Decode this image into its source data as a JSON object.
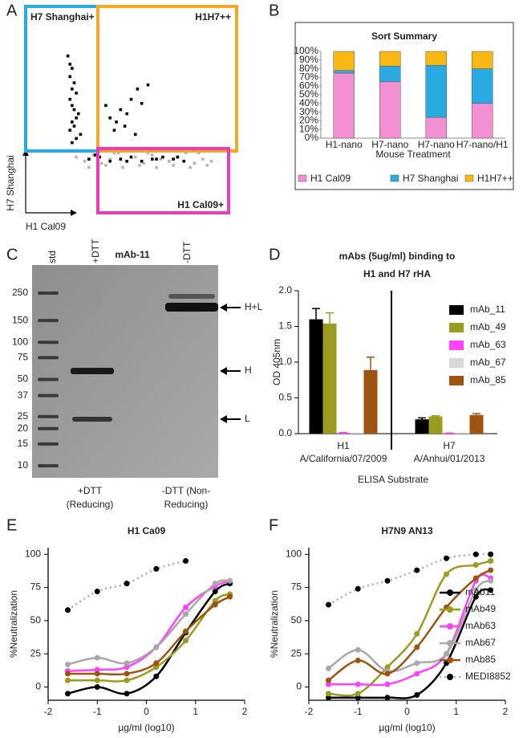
{
  "chart_data": [
    {
      "panel": "A",
      "type": "scatter",
      "xlabel": "H1 Cal09",
      "ylabel": "H7 Shanghai",
      "gates": [
        "H7 Shanghai+",
        "H1H7++",
        "H1 Cal09+"
      ],
      "gate_colors": [
        "#29abe2",
        "#f7a823",
        "#ee3bbb"
      ],
      "xlim": [
        0,
        100
      ],
      "ylim": [
        0,
        100
      ],
      "series": [
        {
          "color": "#b5b5b5",
          "x": [
            24,
            28,
            32,
            36,
            40,
            44,
            48,
            52,
            56,
            60,
            64,
            68,
            72,
            76,
            80,
            84,
            88,
            30,
            38,
            46,
            54,
            62,
            70,
            78,
            86,
            26,
            34,
            42,
            50,
            58,
            66,
            74,
            82
          ],
          "y": [
            27,
            25,
            28,
            24,
            26,
            29,
            25,
            27,
            24,
            28,
            26,
            25,
            27,
            29,
            24,
            26,
            25,
            22,
            23,
            22,
            23,
            22,
            23,
            22,
            23,
            30,
            30,
            29,
            30,
            29,
            30,
            30,
            29
          ]
        },
        {
          "color": "#000000",
          "x": [
            20,
            21,
            22,
            21,
            23,
            22,
            24,
            21,
            22,
            23,
            25,
            24,
            22,
            23,
            21,
            26,
            24,
            22,
            38,
            40,
            43,
            45,
            48,
            50,
            53,
            55,
            58,
            42,
            47,
            52,
            30,
            35,
            40,
            45,
            50,
            55,
            60,
            65,
            70,
            75,
            33,
            48,
            62,
            72
          ],
          "y": [
            76,
            72,
            70,
            66,
            63,
            60,
            58,
            55,
            52,
            50,
            48,
            46,
            44,
            42,
            40,
            38,
            36,
            34,
            52,
            46,
            44,
            50,
            48,
            55,
            60,
            53,
            62,
            40,
            42,
            38,
            26,
            27,
            25,
            26,
            27,
            25,
            26,
            27,
            26,
            25,
            28,
            25,
            26,
            27
          ]
        }
      ]
    },
    {
      "panel": "B",
      "type": "stacked_bar",
      "title": "Sort Summary",
      "xlabel": "Mouse Treatment",
      "categories": [
        "H1-nano",
        "H7-nano",
        "H7-nano",
        "H7-nano/H1"
      ],
      "series": [
        {
          "name": "H1 Cal09",
          "color": "#f38fd3",
          "values": [
            75,
            65,
            24,
            40
          ]
        },
        {
          "name": "H7 Shanghai",
          "color": "#29abe2",
          "values": [
            3,
            18,
            60,
            40
          ]
        },
        {
          "name": "H1H7++",
          "color": "#fbb814",
          "values": [
            22,
            17,
            16,
            20
          ]
        }
      ],
      "ylim": [
        0,
        100
      ],
      "yticks": [
        {
          "value": 0,
          "label": "0%"
        },
        {
          "value": 10,
          "label": "10%"
        },
        {
          "value": 20,
          "label": "20%"
        },
        {
          "value": 30,
          "label": "30%"
        },
        {
          "value": 40,
          "label": "40%"
        },
        {
          "value": 50,
          "label": "50%"
        },
        {
          "value": 60,
          "label": "60%"
        },
        {
          "value": 70,
          "label": "70%"
        },
        {
          "value": 80,
          "label": "80%"
        },
        {
          "value": 90,
          "label": "90%"
        },
        {
          "value": 100,
          "label": "100%"
        }
      ]
    },
    {
      "panel": "C",
      "type": "gel",
      "title": "mAb-11",
      "lanes": [
        "std",
        "+DTT",
        "-DTT"
      ],
      "ladder": [
        250,
        150,
        100,
        75,
        50,
        37,
        25,
        20,
        15,
        10
      ],
      "bands": [
        "H+L",
        "H",
        "L"
      ],
      "conditions": [
        [
          "+DTT",
          "(Reducing)"
        ],
        [
          "-DTT (Non-",
          "Reducing)"
        ]
      ]
    },
    {
      "panel": "D",
      "type": "grouped_bar",
      "title": [
        "mAbs (5ug/ml) binding to",
        "H1 and H7 rHA"
      ],
      "ylabel": "OD 405nm",
      "xlabel": "ELISA Substrate",
      "categories": [
        "H1",
        "H7"
      ],
      "category_subtitles": [
        "A/California/07/2009",
        "A/Anhui/01/2013"
      ],
      "series": [
        {
          "name": "mAb_11",
          "color": "#000000",
          "values": [
            1.6,
            0.2
          ],
          "errors": [
            0.15,
            0.02
          ]
        },
        {
          "name": "mAb_49",
          "color": "#9b9b1f",
          "values": [
            1.54,
            0.24
          ],
          "errors": [
            0.15,
            0.01
          ]
        },
        {
          "name": "mAb_63",
          "color": "#ff40ff",
          "values": [
            0.01,
            0.005
          ],
          "errors": [
            0.005,
            0.003
          ]
        },
        {
          "name": "mAb_67",
          "color": "#d8d8d8",
          "values": [
            0.005,
            0.005
          ],
          "errors": [
            0.003,
            0.003
          ]
        },
        {
          "name": "mAb_85",
          "color": "#a0520f",
          "values": [
            0.89,
            0.26
          ],
          "errors": [
            0.18,
            0.02
          ]
        }
      ],
      "ylim": [
        0,
        2
      ],
      "yticks": [
        {
          "value": 0,
          "label": "0.0"
        },
        {
          "value": 0.5,
          "label": "0.5"
        },
        {
          "value": 1,
          "label": "1.0"
        },
        {
          "value": 1.5,
          "label": "1.5"
        },
        {
          "value": 2,
          "label": "2.0"
        }
      ]
    },
    {
      "panel": "E",
      "type": "curve",
      "title": "H1 Ca09",
      "xlabel": "µg/ml (log10)",
      "ylabel": "%Neutralization",
      "x": [
        -1.6,
        -1.0,
        -0.4,
        0.2,
        0.8,
        1.4,
        1.7
      ],
      "series": [
        {
          "name": "mAb11",
          "color": "#000000",
          "values": [
            -5,
            0,
            -5,
            8,
            41,
            72,
            78
          ]
        },
        {
          "name": "mAb49",
          "color": "#9b9b1f",
          "values": [
            5,
            5,
            5,
            15,
            35,
            65,
            70
          ]
        },
        {
          "name": "mAb63",
          "color": "#ff40ff",
          "values": [
            12,
            13,
            15,
            30,
            60,
            76,
            80
          ]
        },
        {
          "name": "mAb67",
          "color": "#a8a8a8",
          "values": [
            17,
            22,
            18,
            30,
            55,
            78,
            80
          ]
        },
        {
          "name": "mAb85",
          "color": "#a0520f",
          "values": [
            10,
            10,
            10,
            18,
            42,
            62,
            68
          ]
        },
        {
          "name": "MEDI8852",
          "color": "#000000",
          "line_color": "#aaaaaa",
          "dotted": true,
          "values": [
            58,
            72,
            78,
            89,
            95,
            null,
            null
          ]
        }
      ],
      "xlim": [
        -2,
        2
      ],
      "xticks": [
        -2,
        -1,
        0,
        1,
        2
      ],
      "ylim": [
        -10,
        105
      ],
      "yticks": [
        0,
        25,
        50,
        75,
        100
      ],
      "legend": false
    },
    {
      "panel": "F",
      "type": "curve",
      "title": "H7N9 AN13",
      "xlabel": "µg/ml (log10)",
      "ylabel": "%Neutralization",
      "x": [
        -1.6,
        -1.0,
        -0.4,
        0.2,
        0.8,
        1.4,
        1.7
      ],
      "series": [
        {
          "name": "mAb11",
          "color": "#000000",
          "values": [
            -8,
            -8,
            -8,
            -6,
            18,
            68,
            73
          ]
        },
        {
          "name": "mAb49",
          "color": "#9b9b1f",
          "values": [
            -5,
            -5,
            15,
            40,
            85,
            92,
            95
          ]
        },
        {
          "name": "mAb63",
          "color": "#ff40ff",
          "values": [
            2,
            2,
            2,
            10,
            25,
            80,
            82
          ]
        },
        {
          "name": "mAb67",
          "color": "#a8a8a8",
          "values": [
            14,
            28,
            12,
            18,
            25,
            73,
            80
          ]
        },
        {
          "name": "mAb85",
          "color": "#a0520f",
          "values": [
            5,
            20,
            10,
            30,
            60,
            82,
            88
          ]
        },
        {
          "name": "MEDI8852",
          "color": "#000000",
          "line_color": "#aaaaaa",
          "dotted": true,
          "values": [
            62,
            74,
            80,
            88,
            97,
            100,
            100
          ]
        }
      ],
      "xlim": [
        -2,
        2
      ],
      "xticks": [
        -2,
        -1,
        0,
        1,
        2
      ],
      "ylim": [
        -10,
        105
      ],
      "yticks": [
        0,
        25,
        50,
        75,
        100
      ],
      "legend": true
    }
  ]
}
